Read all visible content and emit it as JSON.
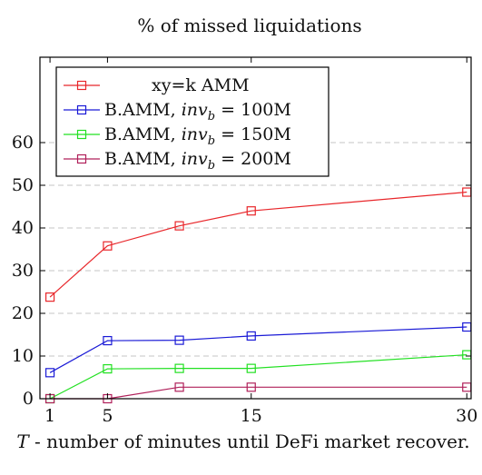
{
  "chart_data": {
    "type": "line",
    "title": "% of missed liquidations",
    "xlabel_var": "T",
    "xlabel_rest": " - number of minutes until DeFi market recover.",
    "ylabel": "",
    "x": [
      1,
      5,
      10,
      15,
      30
    ],
    "x_ticks": [
      1,
      5,
      15,
      30
    ],
    "xlim": [
      0.3,
      30.3
    ],
    "ylim": [
      0,
      80
    ],
    "y_ticks": [
      0,
      10,
      20,
      30,
      40,
      50,
      60
    ],
    "grid": "horizontal dashed",
    "legend_position": "top-left",
    "series": [
      {
        "name": "xy=k AMM",
        "name_parts": [
          "xy=k AMM",
          "",
          "",
          ""
        ],
        "color": "#e8262a",
        "values": [
          23.8,
          35.8,
          40.5,
          44.0,
          48.4
        ]
      },
      {
        "name": "B.AMM, invb = 100M",
        "name_parts": [
          "B.AMM, ",
          "inv",
          "b",
          " = 100M"
        ],
        "color": "#1a1ad6",
        "values": [
          6.1,
          13.6,
          13.7,
          14.7,
          16.8
        ]
      },
      {
        "name": "B.AMM, invb = 150M",
        "name_parts": [
          "B.AMM, ",
          "inv",
          "b",
          " = 150M"
        ],
        "color": "#22e022",
        "values": [
          0,
          7.0,
          7.1,
          7.1,
          10.3
        ]
      },
      {
        "name": "B.AMM, invb = 200M",
        "name_parts": [
          "B.AMM, ",
          "inv",
          "b",
          " = 200M"
        ],
        "color": "#b0205a",
        "values": [
          0,
          0,
          2.7,
          2.7,
          2.7
        ]
      }
    ]
  }
}
